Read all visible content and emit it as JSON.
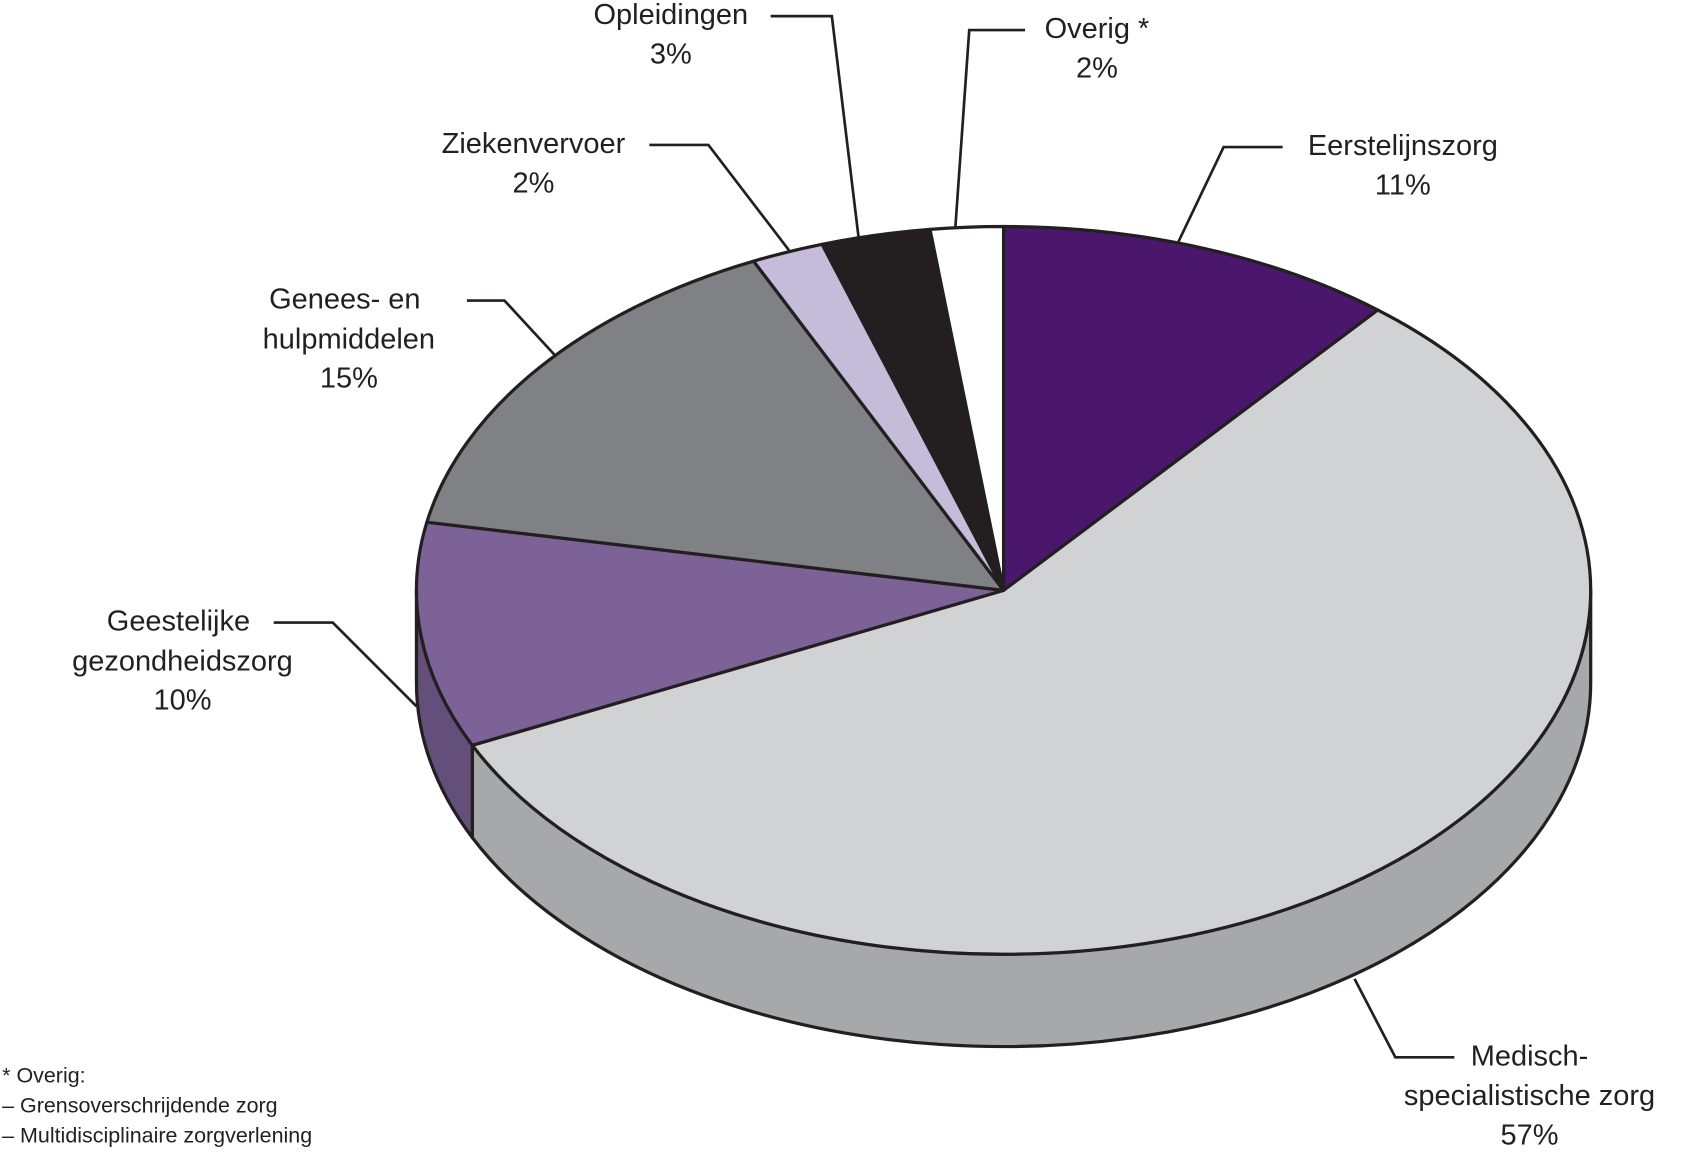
{
  "chart_data": {
    "type": "pie",
    "categories": [
      "Eerstelijnszorg",
      "Medisch-specialistische zorg",
      "Geestelijke gezondheidszorg",
      "Genees- en hulpmiddelen",
      "Ziekenvervoer",
      "Opleidingen",
      "Overig *"
    ],
    "values": [
      11,
      57,
      10,
      15,
      2,
      3,
      2
    ],
    "value_labels": [
      "11%",
      "57%",
      "10%",
      "15%",
      "2%",
      "3%",
      "2%"
    ],
    "colors": [
      "#4b176c",
      "#d1d2d4",
      "#7d6298",
      "#808184",
      "#c5bcd9",
      "#231f20",
      "#ffffff"
    ],
    "footnote": {
      "title": "* Overig:",
      "items": [
        "– Grensoverschrijdende zorg",
        "– Multidisciplinaire zorgverlening"
      ]
    }
  }
}
